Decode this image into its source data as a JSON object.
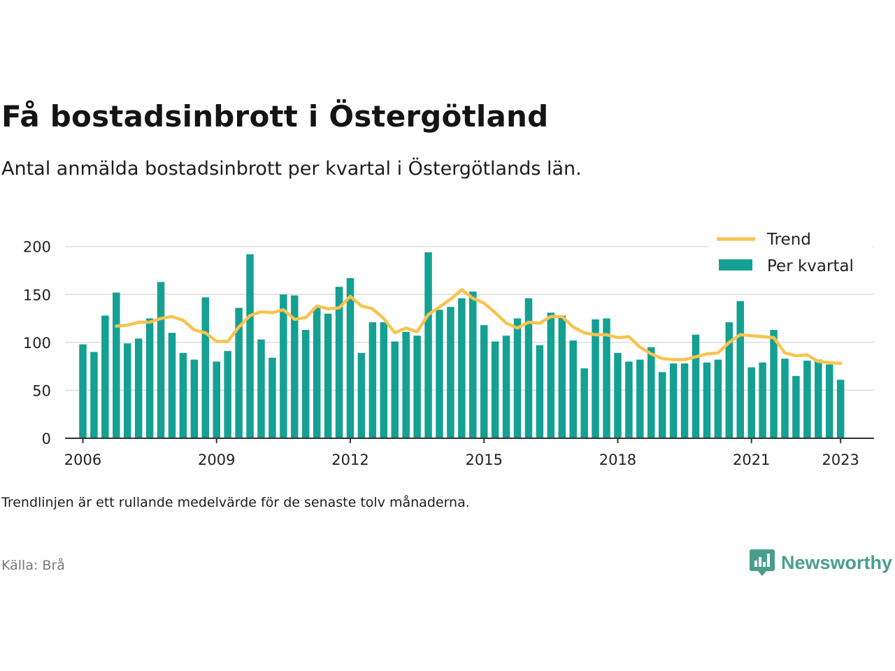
{
  "title": "Få bostadsinbrott i Östergötland",
  "subtitle": "Antal anmälda bostadsinbrott per kvartal i Östergötlands län.",
  "note": "Trendlinjen är ett rullande medelvärde för de senaste tolv månaderna.",
  "source": "Källa: Brå",
  "brand": {
    "name": "Newsworthy",
    "color": "#4a9e8e"
  },
  "colors": {
    "bar": "#14a092",
    "trend": "#f8c44f",
    "grid": "#dddddd",
    "axis": "#333333"
  },
  "chart_data": {
    "type": "bar",
    "x_start_year": 2006,
    "x_start_quarter": 1,
    "xlim": [
      2005.6,
      2023.75
    ],
    "ylim": [
      0,
      210
    ],
    "yticks": [
      0,
      50,
      100,
      150,
      200
    ],
    "xticks": [
      2006,
      2009,
      2012,
      2015,
      2018,
      2021,
      2023
    ],
    "grid": true,
    "legend": "top-right",
    "series": [
      {
        "name": "Per kvartal",
        "type": "bar",
        "values": [
          98,
          90,
          128,
          152,
          99,
          104,
          125,
          163,
          110,
          89,
          82,
          147,
          80,
          91,
          136,
          192,
          103,
          84,
          150,
          149,
          113,
          136,
          130,
          158,
          167,
          89,
          121,
          121,
          101,
          111,
          107,
          194,
          134,
          137,
          146,
          153,
          118,
          101,
          107,
          125,
          146,
          97,
          131,
          128,
          102,
          73,
          124,
          125,
          89,
          80,
          82,
          95,
          69,
          78,
          78,
          108,
          79,
          82,
          121,
          143,
          74,
          79,
          113,
          83,
          65,
          81,
          82,
          77,
          61
        ]
      },
      {
        "name": "Trend",
        "type": "line",
        "start_index": 3,
        "values": [
          117,
          118,
          121,
          121,
          125,
          127,
          123,
          113,
          110,
          101,
          101,
          116,
          128,
          132,
          131,
          134,
          124,
          126,
          138,
          135,
          136,
          148,
          138,
          135,
          125,
          110,
          115,
          111,
          129,
          137,
          145,
          155,
          146,
          141,
          131,
          120,
          115,
          121,
          120,
          127,
          127,
          116,
          110,
          108,
          108,
          105,
          106,
          95,
          88,
          83,
          82,
          82,
          85,
          88,
          89,
          100,
          108,
          107,
          106,
          105,
          89,
          86,
          87,
          80,
          79,
          78
        ]
      }
    ]
  }
}
